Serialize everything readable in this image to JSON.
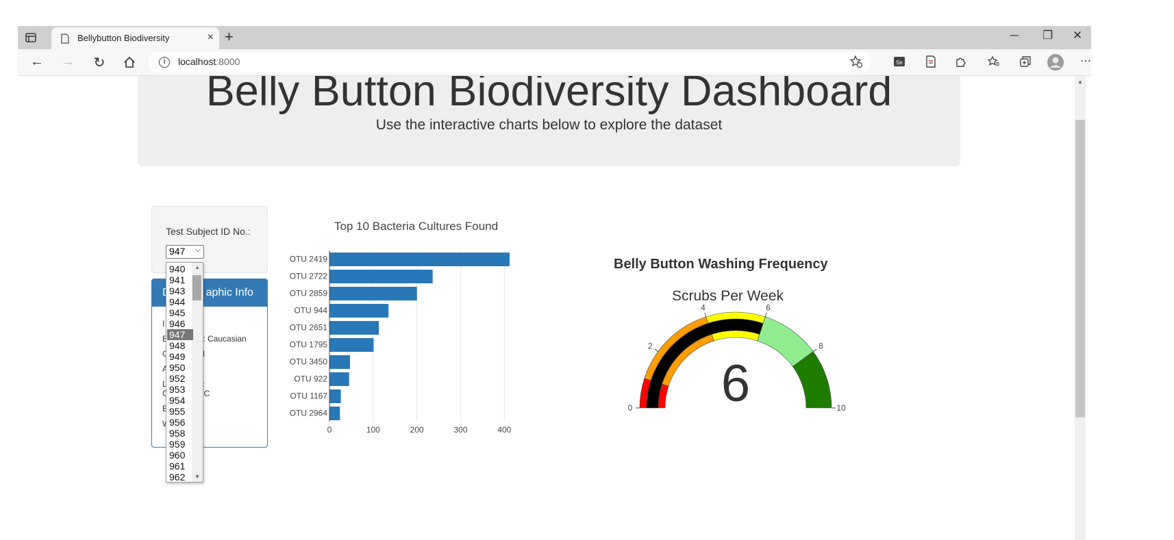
{
  "browser": {
    "tab_title": "Bellybutton Biodiversity",
    "url_host": "localhost",
    "url_port": ":8000",
    "new_tab": "+",
    "tab_close": "×",
    "minimize": "─",
    "restore": "❐",
    "close": "✕",
    "back": "←",
    "forward": "→",
    "reload": "↻",
    "more": "⋯"
  },
  "page": {
    "title": "Belly Button Biodiversity Dashboard",
    "subtitle": "Use the interactive charts below to explore the dataset"
  },
  "selector": {
    "label": "Test Subject ID No.:",
    "selected": "947",
    "options": [
      "940",
      "941",
      "943",
      "944",
      "945",
      "946",
      "947",
      "948",
      "949",
      "950",
      "952",
      "953",
      "954",
      "955",
      "956",
      "958",
      "959",
      "960",
      "961",
      "962"
    ]
  },
  "demographics": {
    "title": "Demographic Info",
    "title_visible_fragment": "aphic Info",
    "title_prefix": "D",
    "lines": [
      {
        "visible": "I",
        "tail": ""
      },
      {
        "visible": "E",
        "tail": "Y: Caucasian"
      },
      {
        "visible": "G",
        "tail": "M"
      },
      {
        "visible": "A",
        "tail": ""
      },
      {
        "visible": "L",
        "tail": "n:"
      },
      {
        "visible": "C",
        "tail": "NC"
      },
      {
        "visible": "B",
        "tail": ""
      },
      {
        "visible": "W",
        "tail": ""
      }
    ]
  },
  "icons": {
    "sidebar": "sidebar-icon",
    "page": "page-icon",
    "home": "home-icon",
    "info": "info-icon",
    "favorite_add": "star-plus-icon",
    "favorites": "favorites-icon",
    "extensions": "puzzle-icon",
    "collections": "collections-icon",
    "profile": "profile-icon"
  },
  "chart_data": [
    {
      "type": "bar",
      "orientation": "horizontal",
      "title": "Top 10 Bacteria Cultures Found",
      "categories": [
        "OTU 2419",
        "OTU 2722",
        "OTU 2859",
        "OTU 944",
        "OTU 2651",
        "OTU 1795",
        "OTU 3450",
        "OTU 922",
        "OTU 1167",
        "OTU 2964"
      ],
      "values": [
        412,
        236,
        200,
        135,
        113,
        101,
        47,
        45,
        26,
        24
      ],
      "xlim": [
        0,
        412
      ],
      "xticks": [
        0,
        100,
        200,
        300,
        400
      ],
      "color": "#2878b8",
      "grid": "vertical"
    },
    {
      "type": "gauge",
      "title": "Belly Button Washing Frequency",
      "subtitle": "Scrubs Per Week",
      "value": 6,
      "range": [
        0,
        10
      ],
      "ticks": [
        0,
        2,
        4,
        6,
        8,
        10
      ],
      "steps": [
        {
          "range": [
            0,
            1
          ],
          "color": "#ff0000"
        },
        {
          "range": [
            1,
            4
          ],
          "color": "#ff9d00"
        },
        {
          "range": [
            4,
            6
          ],
          "color": "#ffff00"
        },
        {
          "range": [
            6,
            8
          ],
          "color": "#90ee90"
        },
        {
          "range": [
            8,
            10
          ],
          "color": "#1e7c00"
        }
      ],
      "bar_color": "#000000"
    }
  ]
}
